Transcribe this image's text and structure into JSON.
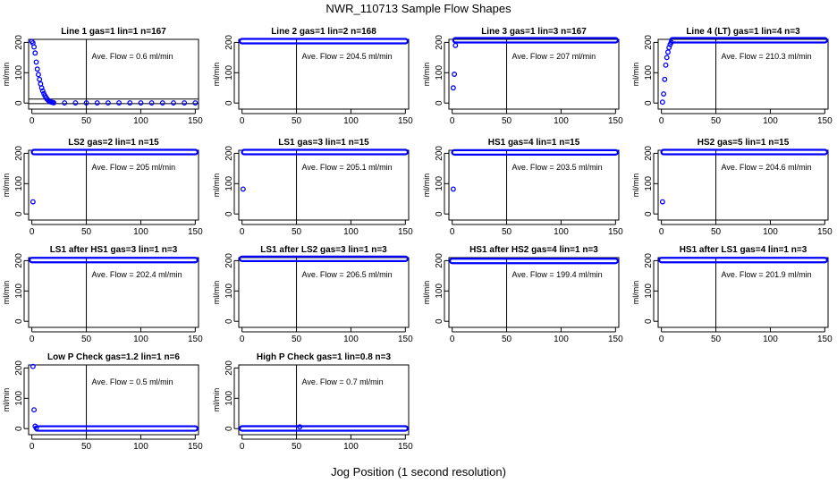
{
  "figure": {
    "title": "NWR_110713  Sample Flow Shapes",
    "xlabel": "Jog Position (1 second resolution)"
  },
  "colors": {
    "points": "#0000ff",
    "axes": "#000000",
    "background": "#ffffff"
  },
  "chart_data": [
    {
      "type": "scatter",
      "title": "Line 1 gas=1 lin=1 n=167",
      "ylabel": "ml/min",
      "annotation": "Ave. Flow =  0.6  ml/min",
      "xlim": [
        -3,
        153
      ],
      "ylim": [
        -20,
        210
      ],
      "xticks": [
        0,
        50,
        100,
        150
      ],
      "yticks": [
        0,
        100,
        200
      ],
      "hlines": [
        -2,
        13
      ],
      "vline": 50,
      "series": [
        {
          "x": [
            0,
            1,
            2,
            3,
            4,
            5,
            6,
            7,
            8,
            9,
            10,
            11,
            12,
            13,
            14,
            15,
            16,
            17,
            18,
            19,
            20,
            30,
            40,
            50,
            60,
            70,
            80,
            90,
            100,
            110,
            120,
            130,
            140,
            150
          ],
          "y": [
            203,
            198,
            185,
            165,
            135,
            112,
            94,
            78,
            63,
            50,
            40,
            31,
            24,
            18,
            13,
            9,
            6,
            4,
            3,
            2,
            1,
            0.5,
            0.5,
            0.5,
            0.5,
            0.5,
            0.5,
            0.5,
            0.5,
            0.5,
            0.5,
            0.5,
            0.5,
            0.5
          ]
        }
      ]
    },
    {
      "type": "scatter",
      "title": "Line 2 gas=1 lin=2 n=168",
      "ylabel": "ml/min",
      "annotation": "Ave. Flow =  204.5  ml/min",
      "xlim": [
        -3,
        153
      ],
      "ylim": [
        -20,
        210
      ],
      "xticks": [
        0,
        50,
        100,
        150
      ],
      "yticks": [
        0,
        100,
        200
      ],
      "hlines": [],
      "vline": 50,
      "series": [
        {
          "x": [
            0,
            150
          ],
          "y": [
            204,
            204
          ],
          "band": true
        }
      ]
    },
    {
      "type": "scatter",
      "title": "Line 3 gas=1 lin=3 n=167",
      "ylabel": "ml/min",
      "annotation": "Ave. Flow =  207  ml/min",
      "xlim": [
        -3,
        153
      ],
      "ylim": [
        -20,
        210
      ],
      "xticks": [
        0,
        50,
        100,
        150
      ],
      "yticks": [
        0,
        100,
        200
      ],
      "hlines": [],
      "vline": 50,
      "series": [
        {
          "x": [
            1,
            2,
            3
          ],
          "y": [
            50,
            95,
            190
          ]
        },
        {
          "x": [
            3,
            150
          ],
          "y": [
            207,
            207
          ],
          "band": true
        }
      ]
    },
    {
      "type": "scatter",
      "title": "Line 4 (LT) gas=1 lin=4 n=3",
      "ylabel": "ml/min",
      "annotation": "Ave. Flow =  210.3  ml/min",
      "xlim": [
        -3,
        153
      ],
      "ylim": [
        -20,
        210
      ],
      "xticks": [
        0,
        50,
        100,
        150
      ],
      "yticks": [
        0,
        100,
        200
      ],
      "hlines": [],
      "vline": 50,
      "series": [
        {
          "x": [
            1,
            2,
            3,
            4,
            5,
            6,
            7,
            8,
            9
          ],
          "y": [
            3,
            30,
            78,
            125,
            150,
            168,
            183,
            193,
            200
          ]
        },
        {
          "x": [
            10,
            150
          ],
          "y": [
            207,
            207
          ],
          "band": true
        }
      ]
    },
    {
      "type": "scatter",
      "title": "LS2 gas=2 lin=1 n=15",
      "ylabel": "ml/min",
      "annotation": "Ave. Flow =  205  ml/min",
      "xlim": [
        -3,
        153
      ],
      "ylim": [
        -20,
        210
      ],
      "xticks": [
        0,
        50,
        100,
        150
      ],
      "yticks": [
        0,
        100,
        200
      ],
      "hlines": [],
      "vline": 50,
      "series": [
        {
          "x": [
            1
          ],
          "y": [
            40
          ]
        },
        {
          "x": [
            2,
            150
          ],
          "y": [
            204,
            204
          ],
          "band": true
        }
      ]
    },
    {
      "type": "scatter",
      "title": "LS1 gas=3 lin=1 n=15",
      "ylabel": "ml/min",
      "annotation": "Ave. Flow =  205.1  ml/min",
      "xlim": [
        -3,
        153
      ],
      "ylim": [
        -20,
        210
      ],
      "xticks": [
        0,
        50,
        100,
        150
      ],
      "yticks": [
        0,
        100,
        200
      ],
      "hlines": [],
      "vline": 50,
      "series": [
        {
          "x": [
            1
          ],
          "y": [
            82
          ]
        },
        {
          "x": [
            2,
            150
          ],
          "y": [
            204,
            204
          ],
          "band": true
        }
      ]
    },
    {
      "type": "scatter",
      "title": "HS1 gas=4 lin=1 n=15",
      "ylabel": "ml/min",
      "annotation": "Ave. Flow =  203.5  ml/min",
      "xlim": [
        -3,
        153
      ],
      "ylim": [
        -20,
        210
      ],
      "xticks": [
        0,
        50,
        100,
        150
      ],
      "yticks": [
        0,
        100,
        200
      ],
      "hlines": [],
      "vline": 50,
      "series": [
        {
          "x": [
            1
          ],
          "y": [
            82
          ]
        },
        {
          "x": [
            2,
            150
          ],
          "y": [
            203,
            203
          ],
          "band": true
        }
      ]
    },
    {
      "type": "scatter",
      "title": "HS2 gas=5 lin=1 n=15",
      "ylabel": "ml/min",
      "annotation": "Ave. Flow =  204.6  ml/min",
      "xlim": [
        -3,
        153
      ],
      "ylim": [
        -20,
        210
      ],
      "xticks": [
        0,
        50,
        100,
        150
      ],
      "yticks": [
        0,
        100,
        200
      ],
      "hlines": [],
      "vline": 50,
      "series": [
        {
          "x": [
            1
          ],
          "y": [
            40
          ]
        },
        {
          "x": [
            2,
            150
          ],
          "y": [
            204,
            204
          ],
          "band": true
        }
      ]
    },
    {
      "type": "scatter",
      "title": "LS1 after HS1 gas=3 lin=1 n=3",
      "ylabel": "ml/min",
      "annotation": "Ave. Flow =  202.4  ml/min",
      "xlim": [
        -3,
        153
      ],
      "ylim": [
        -20,
        210
      ],
      "xticks": [
        0,
        50,
        100,
        150
      ],
      "yticks": [
        0,
        100,
        200
      ],
      "hlines": [],
      "vline": 50,
      "series": [
        {
          "x": [
            0,
            150
          ],
          "y": [
            202,
            202
          ],
          "band": true
        }
      ]
    },
    {
      "type": "scatter",
      "title": "LS1 after LS2 gas=3 lin=1 n=3",
      "ylabel": "ml/min",
      "annotation": "Ave. Flow =  206.5  ml/min",
      "xlim": [
        -3,
        153
      ],
      "ylim": [
        -20,
        210
      ],
      "xticks": [
        0,
        50,
        100,
        150
      ],
      "yticks": [
        0,
        100,
        200
      ],
      "hlines": [],
      "vline": 50,
      "series": [
        {
          "x": [
            0,
            150
          ],
          "y": [
            206,
            206
          ],
          "band": true
        }
      ]
    },
    {
      "type": "scatter",
      "title": "HS1 after HS2 gas=4 lin=1 n=3",
      "ylabel": "ml/min",
      "annotation": "Ave. Flow =  199.4  ml/min",
      "xlim": [
        -3,
        153
      ],
      "ylim": [
        -20,
        210
      ],
      "xticks": [
        0,
        50,
        100,
        150
      ],
      "yticks": [
        0,
        100,
        200
      ],
      "hlines": [],
      "vline": 50,
      "series": [
        {
          "x": [
            0,
            150
          ],
          "y": [
            199,
            199
          ],
          "band": true
        }
      ]
    },
    {
      "type": "scatter",
      "title": "HS1 after LS1 gas=4 lin=1 n=3",
      "ylabel": "ml/min",
      "annotation": "Ave. Flow =  201.9  ml/min",
      "xlim": [
        -3,
        153
      ],
      "ylim": [
        -20,
        210
      ],
      "xticks": [
        0,
        50,
        100,
        150
      ],
      "yticks": [
        0,
        100,
        200
      ],
      "hlines": [],
      "vline": 50,
      "series": [
        {
          "x": [
            0,
            150
          ],
          "y": [
            202,
            202
          ],
          "band": true
        }
      ]
    },
    {
      "type": "scatter",
      "title": "Low P Check gas=1.2 lin=1 n=6",
      "ylabel": "ml/min",
      "annotation": "Ave. Flow =  0.5  ml/min",
      "xlim": [
        -3,
        153
      ],
      "ylim": [
        -20,
        210
      ],
      "xticks": [
        0,
        50,
        100,
        150
      ],
      "yticks": [
        0,
        100,
        200
      ],
      "hlines": [],
      "vline": 50,
      "series": [
        {
          "x": [
            1,
            2,
            3,
            4
          ],
          "y": [
            205,
            62,
            8,
            2
          ]
        },
        {
          "x": [
            5,
            150
          ],
          "y": [
            0.5,
            0.5
          ],
          "band": true
        }
      ]
    },
    {
      "type": "scatter",
      "title": "High P Check gas=1 lin=0.8 n=3",
      "ylabel": "ml/min",
      "annotation": "Ave. Flow =  0.7  ml/min",
      "xlim": [
        -3,
        153
      ],
      "ylim": [
        -20,
        210
      ],
      "xticks": [
        0,
        50,
        100,
        150
      ],
      "yticks": [
        0,
        100,
        200
      ],
      "hlines": [],
      "vline": 50,
      "series": [
        {
          "x": [
            0,
            150
          ],
          "y": [
            0.7,
            0.7
          ],
          "band": true
        },
        {
          "x": [
            53
          ],
          "y": [
            6
          ]
        }
      ]
    }
  ]
}
